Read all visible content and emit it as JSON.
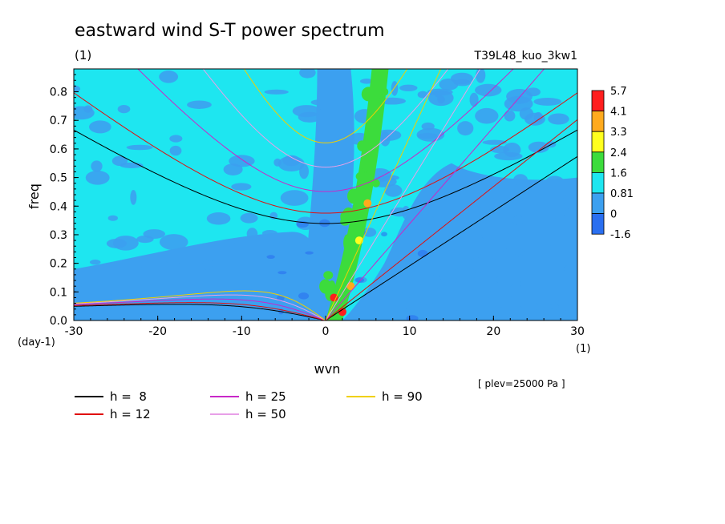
{
  "colors": {
    "background": "#ffffff",
    "levels": [
      "#2a6ff0",
      "#3ca0f0",
      "#1ee6f0",
      "#3cdc3c",
      "#ffff1e",
      "#ffaa1e",
      "#ff1e1e"
    ],
    "h8": "#000000",
    "h12": "#e01010",
    "h25": "#c828c8",
    "h50": "#e8a0e8",
    "h90": "#f0d000"
  },
  "chart_data": {
    "type": "heatmap",
    "title": "eastward wind S-T power spectrum",
    "subtitle_left": "(1)",
    "subtitle_right": "T39L48_kuo_3kw1",
    "xlabel": "wvn",
    "xunit": "(1)",
    "ylabel": "freq",
    "yunit": "(day-1)",
    "annotation": "[ plev=25000 Pa ]",
    "xlim": [
      -30,
      30
    ],
    "ylim": [
      0,
      0.88
    ],
    "xticks": [
      "-30",
      "-20",
      "-10",
      "0",
      "10",
      "20",
      "30"
    ],
    "yticks": [
      "0.0",
      "0.1",
      "0.2",
      "0.3",
      "0.4",
      "0.5",
      "0.6",
      "0.7",
      "0.8"
    ],
    "colorbar": [
      "5.7",
      "4.1",
      "3.3",
      "2.4",
      "1.6",
      "0.81",
      "0",
      "-1.6"
    ],
    "dispersion_curves": [
      {
        "name": "h =  8",
        "h": 8
      },
      {
        "name": "h = 12",
        "h": 12
      },
      {
        "name": "h = 25",
        "h": 25
      },
      {
        "name": "h = 50",
        "h": 50
      },
      {
        "name": "h = 90",
        "h": 90
      }
    ],
    "high_power_points": [
      {
        "x": 1,
        "y": 0.08,
        "level": 6
      },
      {
        "x": 2,
        "y": 0.03,
        "level": 6
      },
      {
        "x": 3,
        "y": 0.12,
        "level": 5
      },
      {
        "x": 4,
        "y": 0.28,
        "level": 4
      },
      {
        "x": 5,
        "y": 0.41,
        "level": 5
      },
      {
        "x": 6,
        "y": 0.48,
        "level": 3
      },
      {
        "x": 3,
        "y": 0.18,
        "level": 3
      },
      {
        "x": 4,
        "y": 0.36,
        "level": 3
      },
      {
        "x": 6,
        "y": 0.72,
        "level": 3
      },
      {
        "x": 7,
        "y": 0.8,
        "level": 3
      }
    ]
  }
}
